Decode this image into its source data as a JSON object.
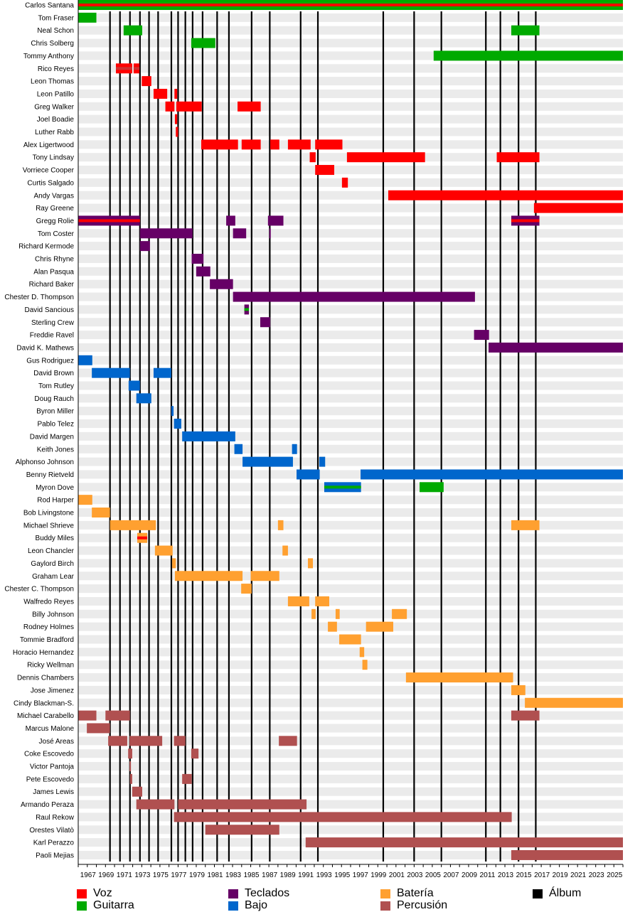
{
  "chart_data": {
    "type": "timeline",
    "title": "",
    "xlabel": "",
    "ylabel": "",
    "xlim": [
      1966,
      2026
    ],
    "x_ticks": [
      1967,
      1969,
      1971,
      1973,
      1975,
      1977,
      1979,
      1981,
      1983,
      1985,
      1987,
      1989,
      1991,
      1993,
      1995,
      1997,
      1999,
      2001,
      2003,
      2005,
      2007,
      2009,
      2011,
      2013,
      2015,
      2017,
      2019,
      2021,
      2023,
      2025
    ],
    "roles": {
      "voz": {
        "label": "Voz",
        "color": "#ff0000"
      },
      "guitarra": {
        "label": "Guitarra",
        "color": "#00aa00"
      },
      "teclados": {
        "label": "Teclados",
        "color": "#660066"
      },
      "bajo": {
        "label": "Bajo",
        "color": "#0066cc"
      },
      "bateria": {
        "label": "Batería",
        "color": "#ffa030"
      },
      "percusion": {
        "label": "Percusión",
        "color": "#b05050"
      },
      "album": {
        "label": "Álbum",
        "color": "#000000"
      }
    },
    "legend_order": [
      "voz",
      "guitarra",
      "teclados",
      "bajo",
      "bateria",
      "percusion",
      "album"
    ],
    "albums": [
      1969.5,
      1970.6,
      1971.7,
      1972.8,
      1973.8,
      1974.8,
      1976.26,
      1977.0,
      1977.8,
      1978.6,
      1979.7,
      1981.3,
      1982.6,
      1985.1,
      1987.1,
      1990.5,
      1992.4,
      1999.6,
      2003.0,
      2006.0,
      2010.9,
      2012.5,
      2014.5,
      2016.4
    ],
    "members": [
      {
        "name": "Carlos Santana",
        "bars": [
          [
            1966,
            2026,
            "guitarra",
            "voz"
          ]
        ]
      },
      {
        "name": "Tom Fraser",
        "bars": [
          [
            1966,
            1968,
            "guitarra"
          ]
        ]
      },
      {
        "name": "Neal Schon",
        "bars": [
          [
            1971.0,
            1973.05,
            "guitarra"
          ],
          [
            2013.7,
            2016.8,
            "guitarra"
          ]
        ]
      },
      {
        "name": "Chris Solberg",
        "bars": [
          [
            1978.45,
            1981.1,
            "guitarra"
          ]
        ]
      },
      {
        "name": "Tommy Anthony",
        "bars": [
          [
            2005.15,
            2026,
            "guitarra"
          ]
        ]
      },
      {
        "name": "Rico Reyes",
        "bars": [
          [
            1970.15,
            1971.95,
            "voz",
            "percusion"
          ],
          [
            1972.1,
            1972.75,
            "voz",
            "percusion"
          ]
        ]
      },
      {
        "name": "Leon Thomas",
        "bars": [
          [
            1973.0,
            1974.05,
            "voz"
          ]
        ]
      },
      {
        "name": "Leon Patillo",
        "bars": [
          [
            1974.3,
            1975.8,
            "voz"
          ],
          [
            1976.6,
            1976.9,
            "voz"
          ]
        ]
      },
      {
        "name": "Greg Walker",
        "bars": [
          [
            1975.6,
            1976.6,
            "voz"
          ],
          [
            1976.8,
            1979.6,
            "voz"
          ],
          [
            1983.55,
            1986.1,
            "voz"
          ]
        ]
      },
      {
        "name": "Joel Boadie",
        "bars": [
          [
            1976.65,
            1976.9,
            "voz"
          ]
        ]
      },
      {
        "name": "Luther Rabb",
        "bars": [
          [
            1976.75,
            1977.0,
            "voz"
          ]
        ]
      },
      {
        "name": "Alex Ligertwood",
        "bars": [
          [
            1979.55,
            1983.6,
            "voz"
          ],
          [
            1984.0,
            1986.1,
            "voz"
          ],
          [
            1987.15,
            1988.15,
            "voz"
          ],
          [
            1989.1,
            1991.6,
            "voz"
          ],
          [
            1992.1,
            1995.1,
            "voz"
          ]
        ]
      },
      {
        "name": "Tony Lindsay",
        "bars": [
          [
            1991.5,
            1992.15,
            "voz"
          ],
          [
            1995.6,
            2004.2,
            "voz"
          ],
          [
            2012.1,
            2016.8,
            "voz"
          ]
        ]
      },
      {
        "name": "Vorriece Cooper",
        "bars": [
          [
            1992.1,
            1994.2,
            "voz"
          ]
        ]
      },
      {
        "name": "Curtis Salgado",
        "bars": [
          [
            1995.05,
            1995.7,
            "voz"
          ]
        ]
      },
      {
        "name": "Andy Vargas",
        "bars": [
          [
            2000.15,
            2026,
            "voz"
          ]
        ]
      },
      {
        "name": "Ray Greene",
        "bars": [
          [
            2016.2,
            2026,
            "voz"
          ]
        ]
      },
      {
        "name": "Gregg Rolie",
        "bars": [
          [
            1966,
            1972.8,
            "teclados",
            "voz"
          ],
          [
            1982.3,
            1983.3,
            "teclados"
          ],
          [
            1986.9,
            1988.6,
            "teclados"
          ],
          [
            2013.7,
            2016.8,
            "teclados",
            "voz"
          ]
        ]
      },
      {
        "name": "Tom Coster",
        "bars": [
          [
            1972.8,
            1978.6,
            "teclados"
          ],
          [
            1983.05,
            1984.5,
            "teclados"
          ],
          [
            1987.05,
            1987.2,
            "teclados"
          ]
        ]
      },
      {
        "name": "Richard Kermode",
        "bars": [
          [
            1972.8,
            1973.9,
            "teclados"
          ]
        ]
      },
      {
        "name": "Chris Rhyne",
        "bars": [
          [
            1978.5,
            1979.8,
            "teclados"
          ]
        ]
      },
      {
        "name": "Alan Pasqua",
        "bars": [
          [
            1979.0,
            1980.55,
            "teclados"
          ]
        ]
      },
      {
        "name": "Richard Baker",
        "bars": [
          [
            1980.5,
            1983.05,
            "teclados"
          ]
        ]
      },
      {
        "name": "Chester D. Thompson",
        "bars": [
          [
            1983.05,
            2009.7,
            "teclados"
          ]
        ]
      },
      {
        "name": "David Sancious",
        "bars": [
          [
            1984.3,
            1984.8,
            "teclados",
            "guitarra"
          ]
        ]
      },
      {
        "name": "Sterling Crew",
        "bars": [
          [
            1986.05,
            1987.15,
            "teclados"
          ]
        ]
      },
      {
        "name": "Freddie Ravel",
        "bars": [
          [
            2009.6,
            2011.25,
            "teclados"
          ]
        ]
      },
      {
        "name": "David K. Mathews",
        "bars": [
          [
            2011.2,
            2026,
            "teclados"
          ]
        ]
      },
      {
        "name": "Gus Rodriguez",
        "bars": [
          [
            1966,
            1967.55,
            "bajo"
          ]
        ]
      },
      {
        "name": "David Brown",
        "bars": [
          [
            1967.5,
            1971.7,
            "bajo"
          ],
          [
            1974.3,
            1976.25,
            "bajo"
          ]
        ]
      },
      {
        "name": "Tom Rutley",
        "bars": [
          [
            1971.55,
            1972.8,
            "bajo"
          ]
        ]
      },
      {
        "name": "Doug Rauch",
        "bars": [
          [
            1972.4,
            1974.05,
            "bajo"
          ]
        ]
      },
      {
        "name": "Byron Miller",
        "bars": [
          [
            1976.25,
            1976.5,
            "bajo"
          ]
        ]
      },
      {
        "name": "Pablo Telez",
        "bars": [
          [
            1976.55,
            1977.35,
            "bajo"
          ]
        ]
      },
      {
        "name": "David Margen",
        "bars": [
          [
            1977.45,
            1983.3,
            "bajo"
          ]
        ]
      },
      {
        "name": "Keith Jones",
        "bars": [
          [
            1983.2,
            1984.1,
            "bajo"
          ],
          [
            1989.55,
            1990.1,
            "bajo"
          ]
        ]
      },
      {
        "name": "Alphonso Johnson",
        "bars": [
          [
            1984.1,
            1989.65,
            "bajo"
          ],
          [
            1992.55,
            1993.2,
            "bajo"
          ]
        ]
      },
      {
        "name": "Benny Rietveld",
        "bars": [
          [
            1990.05,
            1992.6,
            "bajo"
          ],
          [
            1997.1,
            2026,
            "bajo"
          ]
        ]
      },
      {
        "name": "Myron Dove",
        "bars": [
          [
            1993.1,
            1997.15,
            "bajo",
            "guitarra"
          ],
          [
            2003.6,
            2006.25,
            "guitarra"
          ]
        ]
      },
      {
        "name": "Rod Harper",
        "bars": [
          [
            1966,
            1967.55,
            "bateria"
          ]
        ]
      },
      {
        "name": "Bob Livingstone",
        "bars": [
          [
            1967.5,
            1969.5,
            "bateria"
          ]
        ]
      },
      {
        "name": "Michael Shrieve",
        "bars": [
          [
            1969.5,
            1974.55,
            "bateria"
          ],
          [
            1988.0,
            1988.6,
            "bateria"
          ],
          [
            2013.7,
            2016.8,
            "bateria"
          ]
        ]
      },
      {
        "name": "Buddy Miles",
        "bars": [
          [
            1972.5,
            1973.6,
            "bateria",
            "voz"
          ]
        ]
      },
      {
        "name": "Leon Chancler",
        "bars": [
          [
            1974.45,
            1976.4,
            "bateria"
          ],
          [
            1988.5,
            1989.1,
            "bateria"
          ]
        ]
      },
      {
        "name": "Gaylord Birch",
        "bars": [
          [
            1976.35,
            1976.75,
            "bateria"
          ],
          [
            1991.3,
            1991.85,
            "bateria"
          ]
        ]
      },
      {
        "name": "Graham Lear",
        "bars": [
          [
            1976.65,
            1984.1,
            "bateria"
          ],
          [
            1985.0,
            1988.15,
            "bateria"
          ]
        ]
      },
      {
        "name": "Chester C. Thompson",
        "bars": [
          [
            1983.95,
            1985.1,
            "bateria"
          ]
        ]
      },
      {
        "name": "Walfredo Reyes",
        "bars": [
          [
            1989.1,
            1991.45,
            "bateria"
          ],
          [
            1992.1,
            1993.65,
            "bateria"
          ]
        ]
      },
      {
        "name": "Billy Johnson",
        "bars": [
          [
            1991.7,
            1992.15,
            "bateria"
          ],
          [
            1994.35,
            1994.8,
            "bateria"
          ],
          [
            2000.55,
            2002.2,
            "bateria"
          ]
        ]
      },
      {
        "name": "Rodney Holmes",
        "bars": [
          [
            1993.5,
            1994.5,
            "bateria"
          ],
          [
            1997.7,
            2000.7,
            "bateria"
          ]
        ]
      },
      {
        "name": "Tommie Bradford",
        "bars": [
          [
            1994.75,
            1997.15,
            "bateria"
          ]
        ]
      },
      {
        "name": "Horacio Hernandez",
        "bars": [
          [
            1997.0,
            1997.5,
            "bateria"
          ]
        ]
      },
      {
        "name": "Ricky Wellman",
        "bars": [
          [
            1997.3,
            1997.85,
            "bateria"
          ]
        ]
      },
      {
        "name": "Dennis Chambers",
        "bars": [
          [
            2002.1,
            2013.9,
            "bateria"
          ]
        ]
      },
      {
        "name": "Jose Jimenez",
        "bars": [
          [
            2013.7,
            2015.25,
            "bateria"
          ]
        ]
      },
      {
        "name": "Cindy Blackman-S.",
        "bars": [
          [
            2015.2,
            2026,
            "bateria"
          ]
        ]
      },
      {
        "name": "Michael Carabello",
        "bars": [
          [
            1966,
            1968,
            "percusion"
          ],
          [
            1969.0,
            1971.7,
            "percusion"
          ],
          [
            2013.7,
            2016.8,
            "percusion"
          ]
        ]
      },
      {
        "name": "Marcus Malone",
        "bars": [
          [
            1966.95,
            1969.5,
            "percusion"
          ]
        ]
      },
      {
        "name": "José Areas",
        "bars": [
          [
            1969.3,
            1971.4,
            "percusion"
          ],
          [
            1971.65,
            1975.25,
            "percusion"
          ],
          [
            1976.55,
            1977.8,
            "percusion"
          ],
          [
            1988.1,
            1990.1,
            "percusion"
          ]
        ]
      },
      {
        "name": "Coke Escovedo",
        "bars": [
          [
            1971.5,
            1971.95,
            "percusion"
          ],
          [
            1978.45,
            1979.25,
            "percusion"
          ]
        ]
      },
      {
        "name": "Victor Pantoja",
        "bars": [
          [
            1971.65,
            1971.8,
            "percusion"
          ]
        ]
      },
      {
        "name": "Pete Escovedo",
        "bars": [
          [
            1971.7,
            1971.95,
            "percusion"
          ],
          [
            1977.45,
            1978.5,
            "percusion"
          ]
        ]
      },
      {
        "name": "James Lewis",
        "bars": [
          [
            1971.95,
            1973.05,
            "percusion"
          ]
        ]
      },
      {
        "name": "Armando Peraza",
        "bars": [
          [
            1972.4,
            1976.6,
            "percusion"
          ],
          [
            1977.0,
            1991.15,
            "percusion"
          ]
        ]
      },
      {
        "name": "Raul Rekow",
        "bars": [
          [
            1976.55,
            2013.75,
            "percusion"
          ]
        ]
      },
      {
        "name": "Orestes Vilatò",
        "bars": [
          [
            1980.0,
            1988.15,
            "percusion"
          ]
        ]
      },
      {
        "name": "Karl Perazzo",
        "bars": [
          [
            1991.05,
            2026,
            "percusion"
          ]
        ]
      },
      {
        "name": "Paoli Mejias",
        "bars": [
          [
            2013.7,
            2026,
            "percusion"
          ]
        ]
      }
    ]
  }
}
